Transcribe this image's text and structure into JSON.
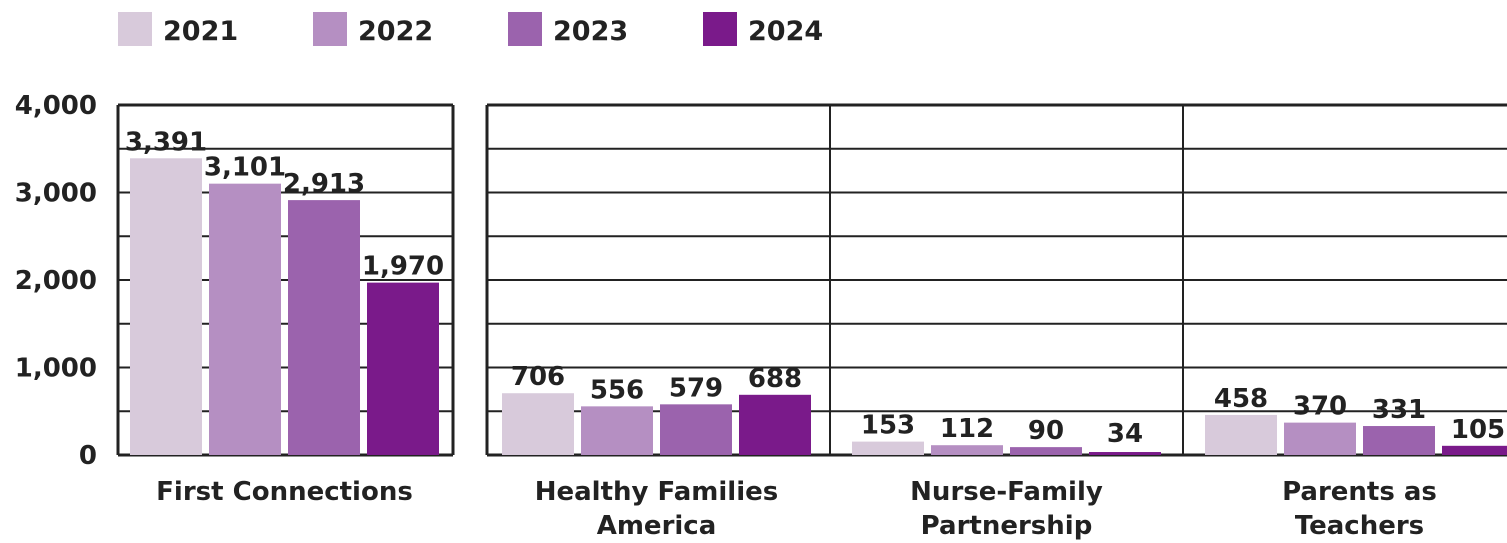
{
  "chart_data": {
    "type": "bar",
    "title": "",
    "xlabel": "",
    "ylabel": "",
    "ylim": [
      0,
      4000
    ],
    "yticks": [
      0,
      1000,
      2000,
      3000,
      4000
    ],
    "ytick_labels": [
      "0",
      "1,000",
      "2,000",
      "3,000",
      "4,000"
    ],
    "grid": true,
    "legend_position": "top-left",
    "categories": [
      [
        "First Connections"
      ],
      [
        "Healthy Families",
        "America"
      ],
      [
        "Nurse-Family",
        "Partnership"
      ],
      [
        "Parents as",
        "Teachers"
      ]
    ],
    "series": [
      {
        "name": "2021",
        "color": "#d8cadb",
        "values": [
          3391,
          706,
          153,
          458
        ],
        "labels": [
          "3,391",
          "706",
          "153",
          "458"
        ]
      },
      {
        "name": "2022",
        "color": "#b58fc2",
        "values": [
          3101,
          556,
          112,
          370
        ],
        "labels": [
          "3,101",
          "556",
          "112",
          "370"
        ]
      },
      {
        "name": "2023",
        "color": "#9b63ad",
        "values": [
          2913,
          579,
          90,
          331
        ],
        "labels": [
          "2,913",
          "579",
          "90",
          "331"
        ]
      },
      {
        "name": "2024",
        "color": "#7a1a8a",
        "values": [
          1970,
          688,
          34,
          105
        ],
        "labels": [
          "1,970",
          "688",
          "34",
          "105"
        ]
      }
    ]
  }
}
